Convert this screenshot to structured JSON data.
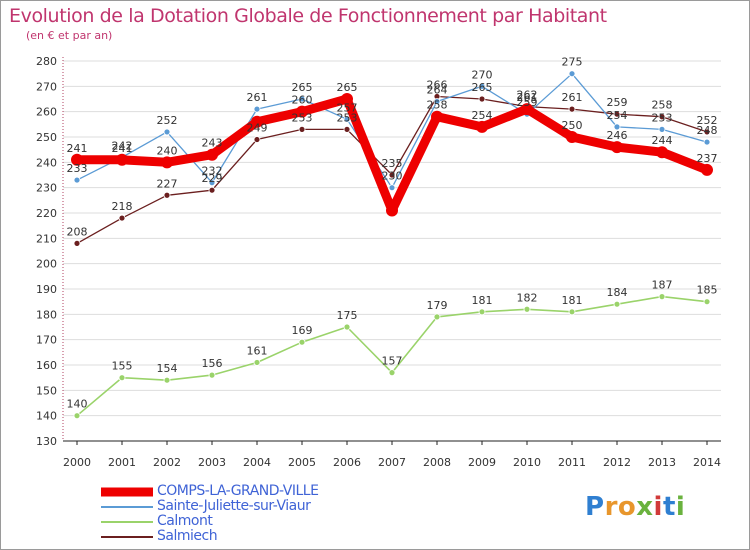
{
  "header": {
    "title": "Evolution de la Dotation Globale de Fonctionnement par Habitant",
    "subtitle": "(en € et par an)"
  },
  "logo": {
    "text": "Proxiti",
    "letters": [
      "P",
      "r",
      "o",
      "x",
      "i",
      "t",
      "i"
    ],
    "letter_colors": [
      "#2f7fd1",
      "#e8962c",
      "#e8962c",
      "#6ab23e",
      "#d13a3a",
      "#2f7fd1",
      "#6ab23e"
    ]
  },
  "chart_data": {
    "type": "line",
    "title": "Evolution de la Dotation Globale de Fonctionnement par Habitant",
    "subtitle": "(en € et par an)",
    "x": [
      2000,
      2001,
      2002,
      2003,
      2004,
      2005,
      2006,
      2007,
      2008,
      2009,
      2010,
      2011,
      2012,
      2013,
      2014
    ],
    "ylim": [
      130,
      280
    ],
    "yticks": [
      130,
      140,
      150,
      160,
      170,
      180,
      190,
      200,
      210,
      220,
      230,
      240,
      250,
      260,
      270,
      280
    ],
    "grid": "horizontal",
    "legend_position": "bottom-left",
    "series": [
      {
        "name": "COMPS-LA-GRAND-VILLE",
        "color": "#ee0000",
        "values": [
          241,
          241,
          240,
          243,
          256,
          260,
          265,
          221,
          258,
          254,
          261,
          250,
          246,
          244,
          237
        ],
        "labels": [
          241,
          241,
          240,
          243,
          null,
          260,
          265,
          null,
          258,
          254,
          261,
          250,
          246,
          244,
          237
        ]
      },
      {
        "name": "Sainte-Juliette-sur-Viaur",
        "color": "#5b9bd5",
        "values": [
          233,
          242,
          252,
          232,
          261,
          265,
          257,
          230,
          264,
          270,
          259,
          275,
          254,
          253,
          248
        ],
        "labels": [
          233,
          242,
          252,
          232,
          261,
          265,
          257,
          230,
          264,
          270,
          259,
          275,
          254,
          253,
          248
        ]
      },
      {
        "name": "Calmont",
        "color": "#9ad36a",
        "values": [
          140,
          155,
          154,
          156,
          161,
          169,
          175,
          157,
          179,
          181,
          182,
          181,
          184,
          187,
          185
        ],
        "labels": [
          140,
          155,
          154,
          156,
          161,
          169,
          175,
          157,
          179,
          181,
          182,
          181,
          184,
          187,
          185
        ]
      },
      {
        "name": "Salmiech",
        "color": "#6b1f1f",
        "values": [
          208,
          218,
          227,
          229,
          249,
          253,
          253,
          235,
          266,
          265,
          262,
          261,
          259,
          258,
          252
        ],
        "labels": [
          208,
          218,
          227,
          229,
          249,
          253,
          253,
          235,
          266,
          265,
          262,
          261,
          259,
          258,
          252
        ]
      }
    ]
  }
}
